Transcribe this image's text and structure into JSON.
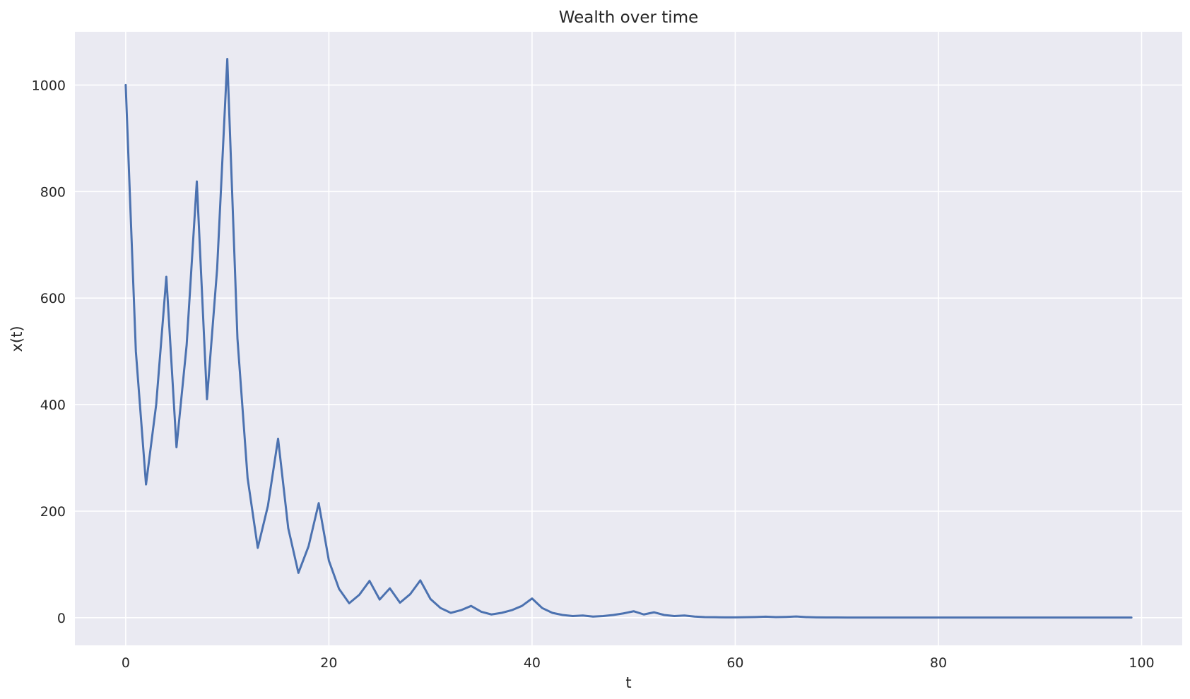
{
  "chart_data": {
    "type": "line",
    "title": "Wealth over time",
    "xlabel": "t",
    "ylabel": "x(t)",
    "xlim": [
      -5,
      104
    ],
    "ylim": [
      -52,
      1100
    ],
    "xticks": [
      0,
      20,
      40,
      60,
      80,
      100
    ],
    "xtick_labels": [
      "0",
      "20",
      "40",
      "60",
      "80",
      "100"
    ],
    "yticks": [
      0,
      200,
      400,
      600,
      800,
      1000
    ],
    "ytick_labels": [
      "0",
      "200",
      "400",
      "600",
      "800",
      "1000"
    ],
    "grid": true,
    "legend": null,
    "background_color": "#eaeaf2",
    "grid_color": "#ffffff",
    "series": [
      {
        "color": "#4c72b0",
        "x": [
          0,
          1,
          2,
          3,
          4,
          5,
          6,
          7,
          8,
          9,
          10,
          11,
          12,
          13,
          14,
          15,
          16,
          17,
          18,
          19,
          20,
          21,
          22,
          23,
          24,
          25,
          26,
          27,
          28,
          29,
          30,
          31,
          32,
          33,
          34,
          35,
          36,
          37,
          38,
          39,
          40,
          41,
          42,
          43,
          44,
          45,
          46,
          47,
          48,
          49,
          50,
          51,
          52,
          53,
          54,
          55,
          56,
          57,
          58,
          59,
          60,
          61,
          62,
          63,
          64,
          65,
          66,
          67,
          68,
          69,
          70,
          71,
          72,
          73,
          74,
          75,
          76,
          77,
          78,
          79,
          80,
          81,
          82,
          83,
          84,
          85,
          86,
          87,
          88,
          89,
          90,
          91,
          92,
          93,
          94,
          95,
          96,
          97,
          98,
          99
        ],
        "values": [
          1000,
          500,
          250,
          400,
          640,
          320,
          512,
          819,
          410,
          655,
          1049,
          524,
          262,
          131,
          210,
          336,
          168,
          84,
          134,
          215,
          107,
          54,
          27,
          43,
          69,
          34,
          55,
          28,
          44,
          70,
          35,
          18,
          9,
          14,
          22,
          11,
          6,
          9,
          14,
          22,
          36,
          18,
          9,
          5,
          3,
          4,
          2,
          3,
          5,
          8,
          12,
          6,
          10,
          5,
          3,
          4,
          2,
          1,
          0.8,
          0.5,
          0.5,
          0.8,
          1.2,
          1.8,
          1,
          1.4,
          2.2,
          1.1,
          0.6,
          0.4,
          0.3,
          0.2,
          0.2,
          0.2,
          0.2,
          0.2,
          0.2,
          0.2,
          0.2,
          0.2,
          0.2,
          0.2,
          0.2,
          0.2,
          0.2,
          0.2,
          0.2,
          0.2,
          0.2,
          0.2,
          0.2,
          0.2,
          0.2,
          0.2,
          0.2,
          0.2,
          0.2,
          0.2,
          0.2,
          0.2
        ]
      }
    ]
  }
}
